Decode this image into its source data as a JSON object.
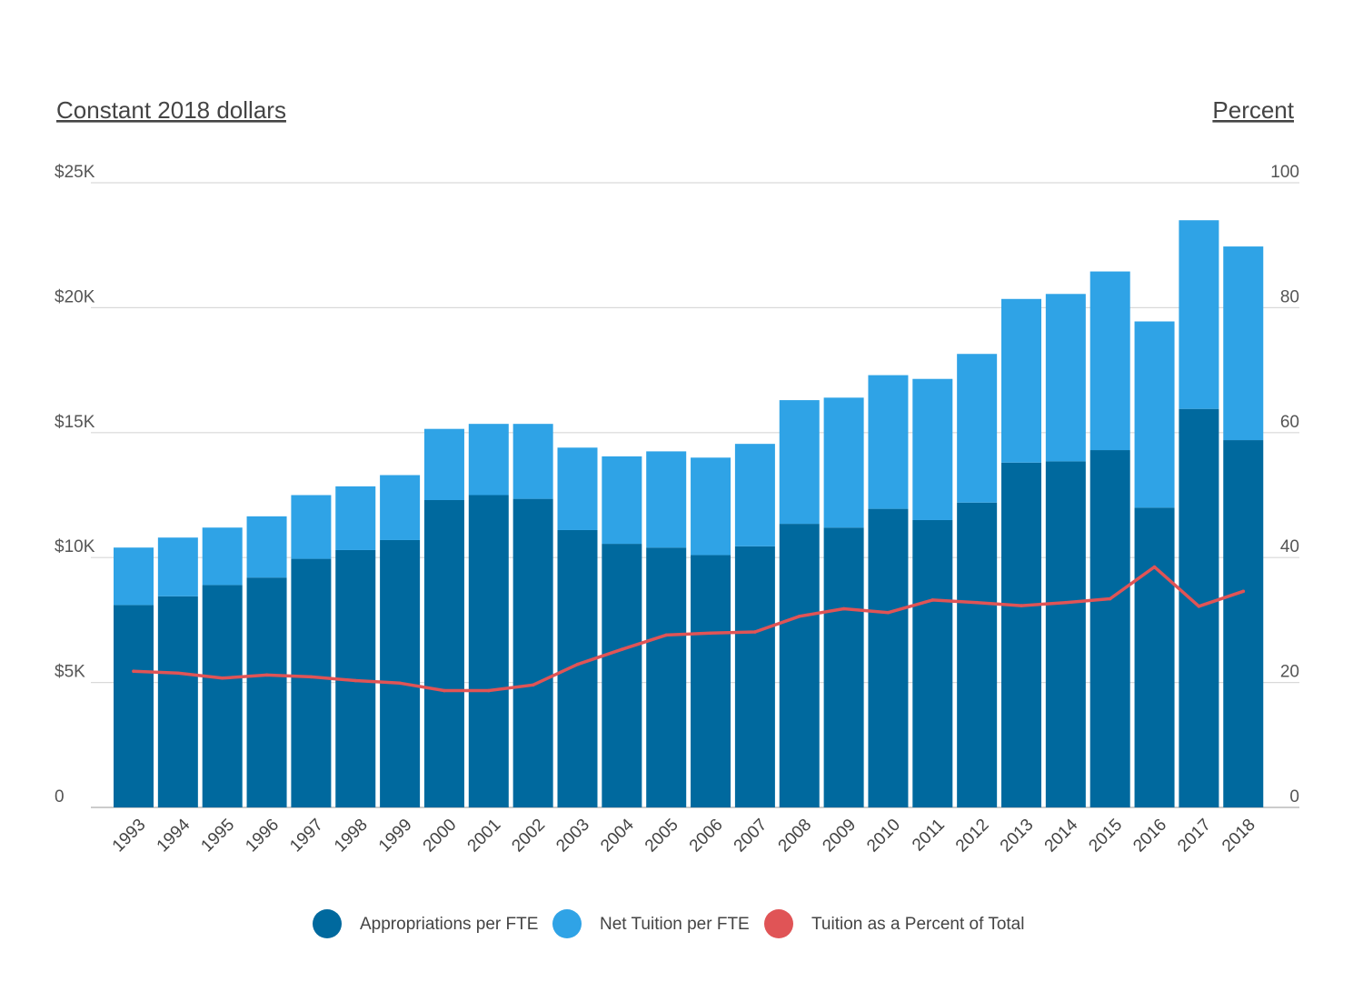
{
  "chart_data": {
    "type": "bar",
    "stacked": true,
    "categories": [
      "1993",
      "1994",
      "1995",
      "1996",
      "1997",
      "1998",
      "1999",
      "2000",
      "2001",
      "2002",
      "2003",
      "2004",
      "2005",
      "2006",
      "2007",
      "2008",
      "2009",
      "2010",
      "2011",
      "2012",
      "2013",
      "2014",
      "2015",
      "2016",
      "2017",
      "2018"
    ],
    "series": [
      {
        "name": "Appropriations per FTE",
        "kind": "bar",
        "axis": "left",
        "color": "#00699e",
        "values": [
          8100,
          8450,
          8900,
          9200,
          9950,
          10300,
          10700,
          12300,
          12500,
          12350,
          11100,
          10550,
          10400,
          10100,
          10450,
          11350,
          11200,
          11950,
          11500,
          12200,
          13800,
          13850,
          14300,
          12000,
          15950,
          14700
        ]
      },
      {
        "name": "Net Tuition per FTE",
        "kind": "bar",
        "axis": "left",
        "color": "#2fa3e6",
        "values": [
          2300,
          2350,
          2300,
          2450,
          2550,
          2550,
          2600,
          2850,
          2850,
          3000,
          3300,
          3500,
          3850,
          3900,
          4100,
          4950,
          5200,
          5350,
          5650,
          5950,
          6550,
          6700,
          7150,
          7450,
          7550,
          7750
        ]
      },
      {
        "name": "Tuition as a Percent of Total",
        "kind": "line",
        "axis": "right",
        "color": "#e05456",
        "values": [
          21.8,
          21.5,
          20.7,
          21.2,
          20.9,
          20.3,
          19.9,
          18.7,
          18.7,
          19.6,
          22.9,
          25.3,
          27.6,
          27.9,
          28.1,
          30.6,
          31.8,
          31.2,
          33.2,
          32.8,
          32.3,
          32.8,
          33.4,
          38.5,
          32.2,
          34.6
        ]
      }
    ],
    "y_left": {
      "title": "Constant 2018 dollars",
      "ylim": [
        0,
        25000
      ],
      "ticks": [
        0,
        5000,
        10000,
        15000,
        20000,
        25000
      ],
      "tick_labels": [
        "0",
        "$5K",
        "$10K",
        "$15K",
        "$20K",
        "$25K"
      ]
    },
    "y_right": {
      "title": "Percent",
      "ylim": [
        0,
        100
      ],
      "ticks": [
        0,
        20,
        40,
        60,
        80,
        100
      ],
      "tick_labels": [
        "0",
        "20",
        "40",
        "60",
        "80",
        "100"
      ]
    },
    "grid": true,
    "legend_position": "bottom-center"
  }
}
